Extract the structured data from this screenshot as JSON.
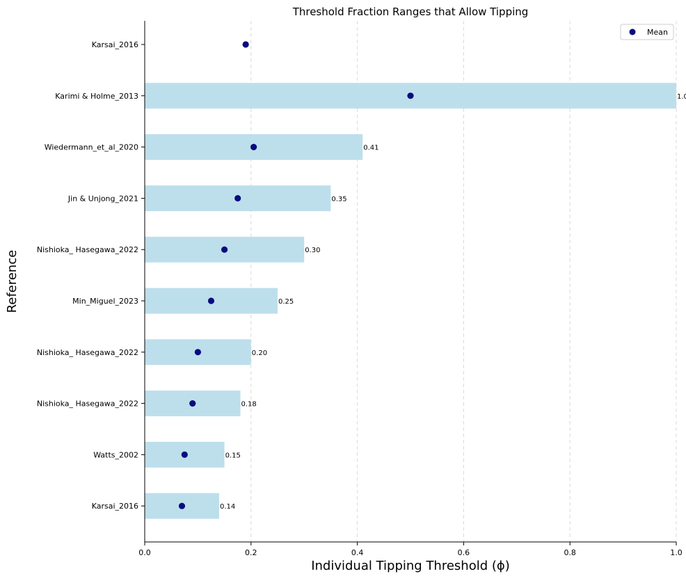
{
  "chart_data": {
    "type": "bar",
    "orientation": "horizontal",
    "title": "Threshold Fraction Ranges that Allow Tipping",
    "xlabel": "Individual Tipping Threshold (ϕ)",
    "ylabel": "Reference",
    "xlim": [
      0,
      1.0
    ],
    "xticks": [
      "0.0",
      "0.2",
      "0.4",
      "0.6",
      "0.8",
      "1.0"
    ],
    "grid": "x-dashed",
    "legend_position": "top-right",
    "bar_color": "#bddfeb",
    "mean_color": "#0a0a80",
    "categories": [
      "Karsai_2016",
      "Karimi & Holme_2013",
      "Wiedermann_et_al_2020",
      "Jin & Unjong_2021",
      "Nishioka_ Hasegawa_2022",
      "Min_Miguel_2023",
      "Nishioka_ Hasegawa_2022",
      "Nishioka_ Hasegawa_2022",
      "Watts_2002",
      "Karsai_2016"
    ],
    "series": [
      {
        "name": "",
        "kind": "bar",
        "values": [
          0.0,
          1.0,
          0.41,
          0.35,
          0.3,
          0.25,
          0.2,
          0.18,
          0.15,
          0.14
        ],
        "labels": [
          "",
          "1.0",
          "0.41",
          "0.35",
          "0.30",
          "0.25",
          "0.20",
          "0.18",
          "0.15",
          "0.14"
        ]
      },
      {
        "name": "Mean",
        "kind": "scatter",
        "values": [
          0.19,
          0.5,
          0.205,
          0.175,
          0.15,
          0.125,
          0.1,
          0.09,
          0.075,
          0.07
        ]
      }
    ]
  }
}
